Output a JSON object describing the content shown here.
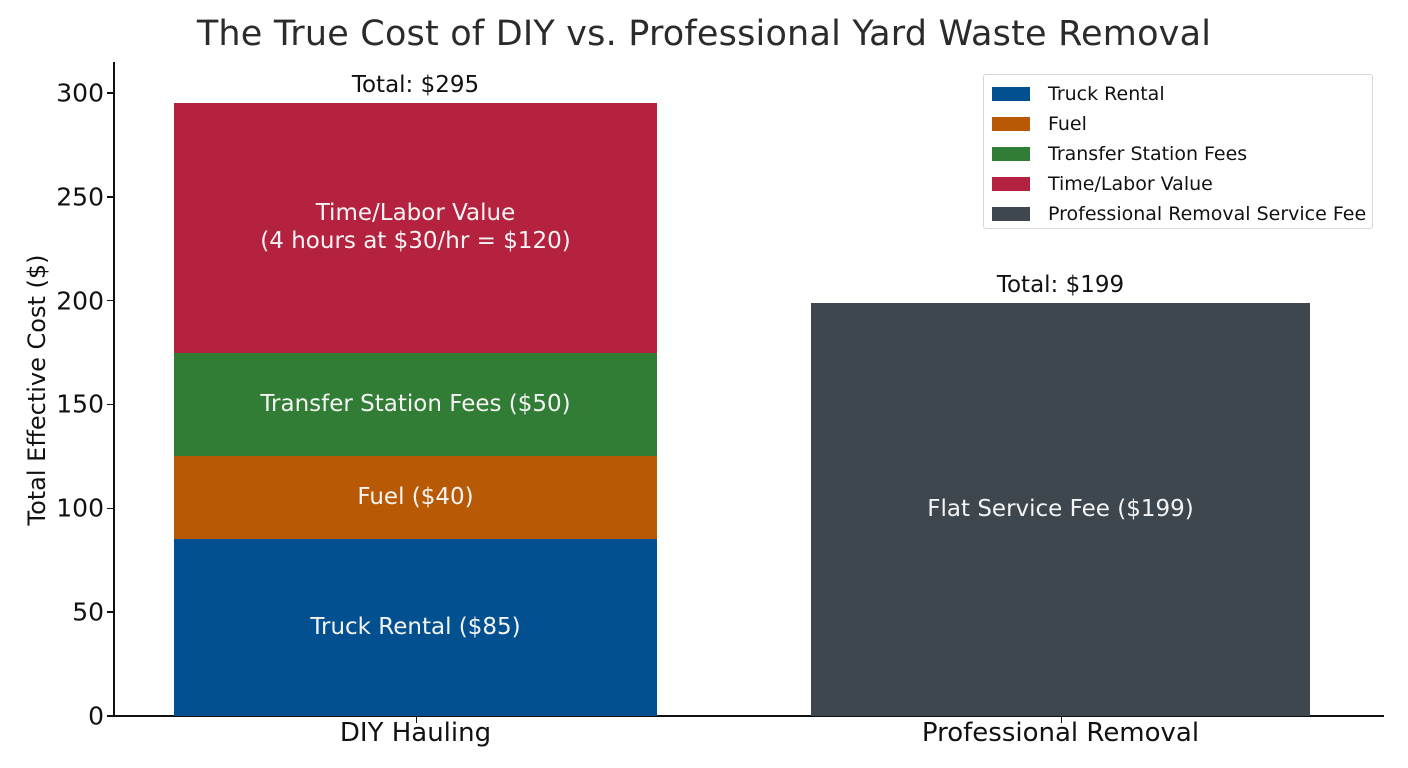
{
  "chart_data": {
    "type": "bar",
    "stacked": true,
    "title": "The True Cost of DIY vs. Professional Yard Waste Removal",
    "xlabel": "",
    "ylabel": "Total Effective Cost ($)",
    "ylim": [
      0,
      315
    ],
    "yticks": [
      0,
      50,
      100,
      150,
      200,
      250,
      300
    ],
    "grid": false,
    "legend_position": "upper right",
    "categories": [
      "DIY Hauling",
      "Professional Removal"
    ],
    "series": [
      {
        "name": "Truck Rental",
        "color": "#035090",
        "values": [
          85,
          0
        ],
        "segment_label": "Truck Rental ($85)"
      },
      {
        "name": "Fuel",
        "color": "#b85a05",
        "values": [
          40,
          0
        ],
        "segment_label": "Fuel ($40)"
      },
      {
        "name": "Transfer Station Fees",
        "color": "#327d36",
        "values": [
          50,
          0
        ],
        "segment_label": "Transfer Station Fees ($50)"
      },
      {
        "name": "Time/Labor Value",
        "color": "#b52240",
        "values": [
          120,
          0
        ],
        "segment_label": "Time/Labor Value\n(4 hours at $30/hr = $120)"
      },
      {
        "name": "Professional Removal Service Fee",
        "color": "#3e474e",
        "values": [
          0,
          199
        ],
        "segment_label": "Flat Service Fee ($199)"
      }
    ],
    "totals": [
      "Total: $295",
      "Total: $199"
    ],
    "totals_values": [
      295,
      199
    ]
  }
}
